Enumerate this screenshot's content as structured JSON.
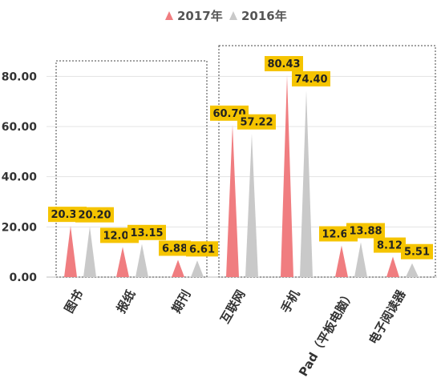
{
  "chart_data": {
    "type": "bar",
    "categories": [
      "图书",
      "报纸",
      "期刊",
      "互联网",
      "手机",
      "Pad（平板电脑）",
      "电子阅读器"
    ],
    "series": [
      {
        "name": "2017年",
        "color": "#f07d80",
        "values": [
          20.38,
          12.0,
          6.88,
          60.7,
          80.43,
          12.61,
          8.12
        ]
      },
      {
        "name": "2016年",
        "color": "#c9c9c9",
        "values": [
          20.2,
          13.15,
          6.61,
          57.22,
          74.4,
          13.88,
          5.51
        ]
      }
    ],
    "value_labels": [
      [
        "20.38",
        "12.00",
        "6.88",
        "60.70",
        "80.43",
        "12.61",
        "8.12"
      ],
      [
        "20.20",
        "13.15",
        "6.61",
        "57.22",
        "74.40",
        "13.88",
        "5.51"
      ]
    ],
    "ylim": [
      0,
      90
    ],
    "yticks": [
      "0.00",
      "20.00",
      "40.00",
      "60.00",
      "80.00"
    ],
    "grid": true,
    "legend_position": "top",
    "mark_shape": "triangle",
    "label_box_color": "#f5c400",
    "groups": [
      {
        "categories": [
          "图书",
          "报纸",
          "期刊"
        ]
      },
      {
        "categories": [
          "互联网",
          "手机",
          "Pad（平板电脑）",
          "电子阅读器"
        ]
      }
    ]
  }
}
